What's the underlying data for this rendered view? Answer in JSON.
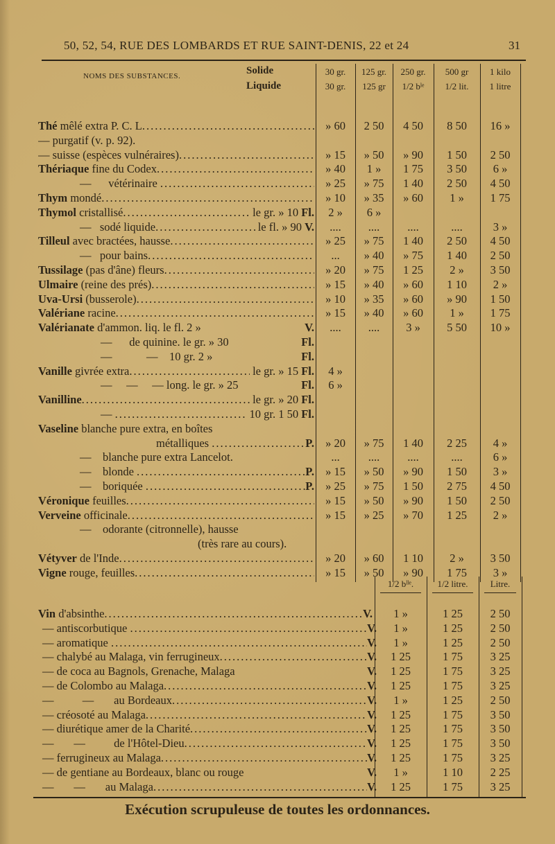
{
  "header": {
    "address": "50, 52, 54, RUE DES LOMBARDS ET RUE SAINT-DENIS, 22 et 24",
    "page_number": "31"
  },
  "table1": {
    "name_header": "NOMS DES SUBSTANCES.",
    "solide": "Solide",
    "liquide": "Liquide",
    "columns": [
      {
        "solid": "30 gr.",
        "liquid": "30 gr."
      },
      {
        "solid": "125 gr.",
        "liquid": "125 gr"
      },
      {
        "solid": "250 gr.",
        "liquid": "1/2 bˡᵉ"
      },
      {
        "solid": "500 gr",
        "liquid": "1/2 lit."
      },
      {
        "solid": "1 kilo",
        "liquid": "1 litre"
      }
    ],
    "rows": [
      {
        "b": "Thé",
        "t": " mêlé extra P. C. L",
        "fill": true,
        "v": [
          "» 60",
          "2 50",
          "4 50",
          "8 50",
          "16 »"
        ]
      },
      {
        "i": 1,
        "t": "— purgatif (v. p. 92).",
        "fill": false,
        "v": [
          "",
          "",
          "",
          "",
          ""
        ]
      },
      {
        "i": 1,
        "t": "— suisse (espèces vulnéraires)",
        "fill": true,
        "v": [
          "» 15",
          "» 50",
          "» 90",
          "1 50",
          "2 50"
        ]
      },
      {
        "b": "Thériaque",
        "t": " fine du Codex",
        "fill": true,
        "v": [
          "» 40",
          "1 »",
          "1 75",
          "3 50",
          "6 »"
        ]
      },
      {
        "i": 2,
        "t": "—      vétérinaire ",
        "fill": true,
        "v": [
          "» 25",
          "» 75",
          "1 40",
          "2 50",
          "4 50"
        ]
      },
      {
        "b": "Thym",
        "t": " mondé",
        "fill": true,
        "v": [
          "» 10",
          "» 35",
          "» 60",
          "1 »",
          "1 75"
        ]
      },
      {
        "b": "Thymol",
        "t": " cristallisé",
        "fill": true,
        "s": " le gr. » 10 ",
        "sb": "Fl.",
        "v": [
          "2 »",
          "6 »",
          "",
          "",
          ""
        ]
      },
      {
        "i": 2,
        "t": "—   sodé liquide",
        "fill": true,
        "s": " le fl. » 90 ",
        "sb": "V.",
        "v": [
          "....",
          "....",
          "....",
          "....",
          "3 »"
        ]
      },
      {
        "b": "Tilleul",
        "t": " avec bractées, hausse",
        "fill": true,
        "v": [
          "» 25",
          "» 75",
          "1 40",
          "2 50",
          "4 50"
        ]
      },
      {
        "i": 2,
        "t": "—   pour bains",
        "fill": true,
        "v": [
          "...",
          "» 40",
          "» 75",
          "1 40",
          "2 50"
        ]
      },
      {
        "b": "Tussilage",
        "t": " (pas d'âne) fleurs",
        "fill": true,
        "v": [
          "» 20",
          "» 75",
          "1 25",
          "2 »",
          "3 50"
        ]
      },
      {
        "b": "Ulmaire",
        "t": " (reine des prés)",
        "fill": true,
        "v": [
          "» 15",
          "» 40",
          "» 60",
          "1 10",
          "2 »"
        ]
      },
      {
        "b": "Uva-Ursi",
        "t": " (busserole)",
        "fill": true,
        "v": [
          "» 10",
          "» 35",
          "» 60",
          "» 90",
          "1 50"
        ]
      },
      {
        "b": "Valériane",
        "t": " racine",
        "fill": true,
        "v": [
          "» 15",
          "» 40",
          "» 60",
          "1 »",
          "1 75"
        ]
      },
      {
        "b": "Valérianate",
        "t": " d'ammon. liq. le fl. 2 » ",
        "fill": false,
        "sb": "V.",
        "v": [
          "....",
          "....",
          "3 »",
          "5 50",
          "10 »"
        ]
      },
      {
        "i": 3,
        "t": "—      de quinine. le gr. » 30 ",
        "fill": false,
        "sb": "Fl.",
        "v": [
          "",
          "",
          "",
          "",
          ""
        ]
      },
      {
        "i": 3,
        "t": "—            —    10 gr. 2 » ",
        "fill": false,
        "sb": "Fl.",
        "v": [
          "",
          "",
          "",
          "",
          ""
        ]
      },
      {
        "b": "Vanille",
        "t": " givrée extra",
        "fill": true,
        "s": " le gr. » 15 ",
        "sb": "Fl.",
        "v": [
          "4 »",
          "",
          "",
          "",
          ""
        ]
      },
      {
        "i": 3,
        "t": "—     —     — long. le gr. » 25 ",
        "fill": false,
        "sb": "Fl.",
        "v": [
          "6 »",
          "",
          "",
          "",
          ""
        ]
      },
      {
        "b": "Vanilline",
        "t": "",
        "fill": true,
        "s": " le gr. » 20 ",
        "sb": "Fl.",
        "v": [
          "",
          "",
          "",
          "",
          ""
        ]
      },
      {
        "i": 3,
        "t": "— ",
        "fill": true,
        "s": " 10 gr. 1 50 ",
        "sb": "Fl.",
        "v": [
          "",
          "",
          "",
          "",
          ""
        ]
      },
      {
        "b": "Vaseline",
        "t": " blanche pure extra, en boîtes",
        "fill": false,
        "v": [
          "",
          "",
          "",
          "",
          ""
        ]
      },
      {
        "i": 4,
        "t": "métalliques ",
        "fill": true,
        "sb": "P.",
        "v": [
          "» 20",
          "» 75",
          "1 40",
          "2 25",
          "4 »"
        ]
      },
      {
        "i": 2,
        "t": "—    blanche pure extra Lancelot.",
        "fill": false,
        "v": [
          "...",
          "....",
          "....",
          "....",
          "6 »"
        ]
      },
      {
        "i": 2,
        "t": "—    blonde ",
        "fill": true,
        "sb": "P.",
        "v": [
          "» 15",
          "» 50",
          "» 90",
          "1 50",
          "3 »"
        ]
      },
      {
        "i": 2,
        "t": "—    boriquée ",
        "fill": true,
        "sb": "P.",
        "v": [
          "» 25",
          "» 75",
          "1 50",
          "2 75",
          "4 50"
        ]
      },
      {
        "b": "Véronique",
        "t": " feuilles",
        "fill": true,
        "v": [
          "» 15",
          "» 50",
          "» 90",
          "1 50",
          "2 50"
        ]
      },
      {
        "b": "Verveine",
        "t": " officinale",
        "fill": true,
        "v": [
          "» 15",
          "» 25",
          "» 70",
          "1 25",
          "2 »"
        ]
      },
      {
        "i": 2,
        "t": "—    odorante (citronnelle), hausse",
        "fill": false,
        "v": [
          "",
          "",
          "",
          "",
          ""
        ]
      },
      {
        "i": 5,
        "t": "(très rare au cours).",
        "fill": false,
        "v": [
          "",
          "",
          "",
          "",
          ""
        ]
      },
      {
        "b": "Vétyver",
        "t": " de l'Inde",
        "fill": true,
        "v": [
          "» 20",
          "» 60",
          "1 10",
          "2 »",
          "3 50"
        ]
      },
      {
        "b": "Vigne",
        "t": " rouge, feuilles",
        "fill": true,
        "v": [
          "» 15",
          "» 50",
          "» 90",
          "1 75",
          "3 »"
        ]
      }
    ]
  },
  "table2": {
    "columns": [
      "1/2 bˡˡᵉ.",
      "1/2 litre.",
      "Litre."
    ],
    "rows": [
      {
        "b": "Vin",
        "t": " d'absinthe",
        "sb": "V.",
        "v": [
          "1 »",
          "1 25",
          "2 50"
        ]
      },
      {
        "t": "— antiscorbutique ",
        "sb": "V.",
        "v": [
          "1 »",
          "1 25",
          "2 50"
        ]
      },
      {
        "t": "— aromatique ",
        "sb": "V.",
        "v": [
          "1 »",
          "1 25",
          "2 50"
        ]
      },
      {
        "t": "— chalybé au Malaga, vin ferrugineux",
        "sb": "V.",
        "v": [
          "1 25",
          "1 75",
          "3 25"
        ]
      },
      {
        "t": "— de coca au Bagnols, Grenache, Malaga ",
        "nofill": true,
        "sb": "V.",
        "v": [
          "1 25",
          "1 75",
          "3 25"
        ]
      },
      {
        "t": "— de Colombo au Malaga",
        "sb": "V.",
        "v": [
          "1 25",
          "1 75",
          "3 25"
        ]
      },
      {
        "t": "—          —       au Bordeaux",
        "sb": "V.",
        "v": [
          "1 »",
          "1 25",
          "2 50"
        ]
      },
      {
        "t": "— créosoté au Malaga",
        "sb": "V.",
        "v": [
          "1 25",
          "1 75",
          "3 50"
        ]
      },
      {
        "t": "— diurétique amer de la Charité",
        "sb": "V.",
        "v": [
          "1 25",
          "1 75",
          "3 50"
        ]
      },
      {
        "t": "—       —          de l'Hôtel-Dieu",
        "sb": "V.",
        "v": [
          "1 25",
          "1 75",
          "3 50"
        ]
      },
      {
        "t": "— ferrugineux au Malaga",
        "sb": "V.",
        "v": [
          "1 25",
          "1 75",
          "3 25"
        ]
      },
      {
        "t": "— de gentiane au Bordeaux, blanc ou rouge ",
        "nofill": true,
        "sb": "V.",
        "v": [
          "1 »",
          "1 10",
          "2 25"
        ]
      },
      {
        "t": "—       —       au Malaga",
        "sb": "V.",
        "v": [
          "1 25",
          "1 75",
          "3 25"
        ]
      }
    ]
  },
  "footer": "Exécution scrupuleuse de toutes les ordonnances."
}
